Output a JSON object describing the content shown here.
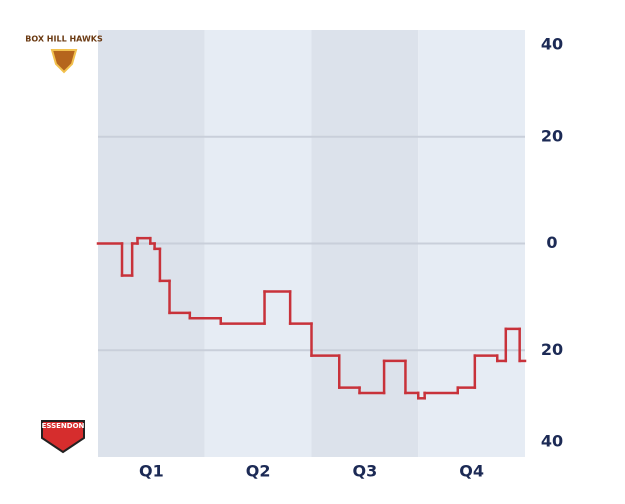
{
  "chart_data": {
    "type": "step",
    "teams": {
      "top": "BOX HILL HAWKS",
      "bottom": "ESSENDON"
    },
    "categories": [
      "Q1",
      "Q2",
      "Q3",
      "Q4"
    ],
    "xlim": [
      0,
      4
    ],
    "ylim": [
      -40,
      40
    ],
    "yticks": [
      {
        "value": -40,
        "label": "40"
      },
      {
        "value": -20,
        "label": "20"
      },
      0,
      20,
      40
    ],
    "grid": true,
    "band_colors": [
      "#dce2eb",
      "#e6ecf4"
    ],
    "series": [
      {
        "color": "#c8323a",
        "x": [
          0,
          0.225,
          0.32,
          0.37,
          0.49,
          0.53,
          0.58,
          0.67,
          0.86,
          1.15,
          1.56,
          1.8,
          2.0,
          2.26,
          2.45,
          2.68,
          2.88,
          3.0,
          3.06,
          3.37,
          3.53,
          3.74,
          3.82,
          3.95
        ],
        "values": [
          0,
          -6,
          0,
          1,
          0,
          -1,
          -7,
          -13,
          -14,
          -15,
          -9,
          -15,
          -21,
          -27,
          -28,
          -22,
          -28,
          -29,
          -28,
          -27,
          -21,
          -22,
          -16,
          -22
        ]
      }
    ]
  }
}
